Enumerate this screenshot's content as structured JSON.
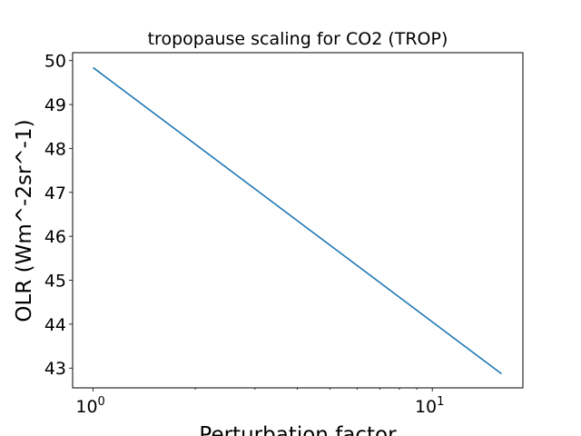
{
  "chart_data": {
    "type": "line",
    "title": "tropopause scaling for CO2 (TROP)",
    "xlabel": "Perturbation factor",
    "ylabel": "OLR (Wm^-2sr^-1)",
    "xscale": "log",
    "xlim": [
      0.87,
      18.5
    ],
    "ylim": [
      42.55,
      50.18
    ],
    "grid": false,
    "legend": "none",
    "xticks": [
      {
        "value": 1,
        "base": "10",
        "exp": "0"
      },
      {
        "value": 10,
        "base": "10",
        "exp": "1"
      }
    ],
    "yticks": [
      43,
      44,
      45,
      46,
      47,
      48,
      49,
      50
    ],
    "series": [
      {
        "color": "#1f77b4",
        "x": [
          1,
          16
        ],
        "y": [
          49.84,
          42.87
        ]
      }
    ]
  }
}
